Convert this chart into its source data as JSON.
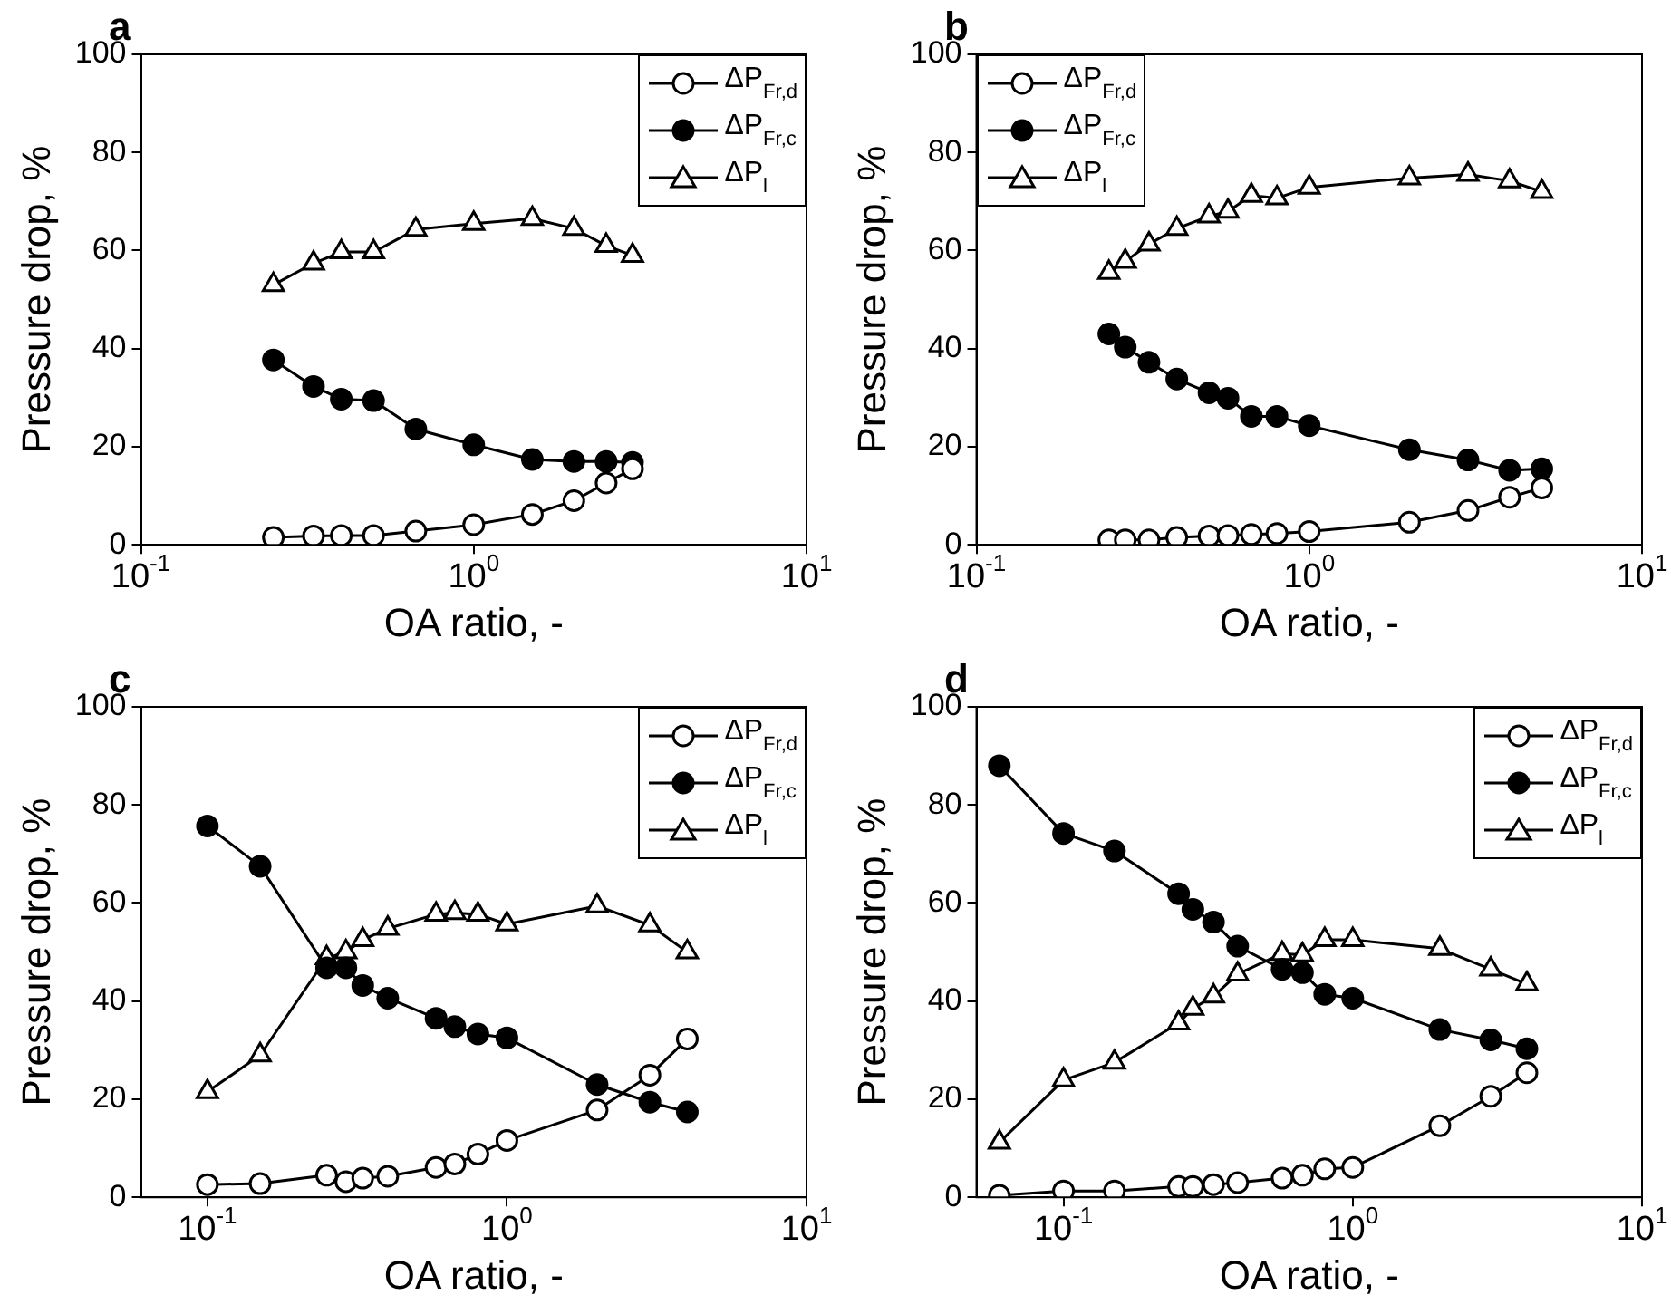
{
  "chart_data": [
    {
      "type": "line",
      "title": "a",
      "xlabel": "OA ratio, -",
      "ylabel": "Pressure drop, %",
      "log": "x",
      "xlim": [
        0.1,
        10
      ],
      "ylim": [
        0,
        100
      ],
      "xticks": [
        {
          "value": 0.1,
          "label": "10$^{-1}$"
        },
        {
          "value": 1,
          "label": "10$^{0}$"
        },
        {
          "value": 10,
          "label": "10$^{1}$"
        }
      ],
      "yticks": [
        0,
        20,
        40,
        60,
        80,
        100
      ],
      "legend": "top right",
      "grid": false,
      "series": [
        {
          "name": "ΔP$_{Fr,d}$",
          "color": "#000000",
          "marker": "open circle",
          "x": [
            0.25,
            0.33,
            0.4,
            0.5,
            0.67,
            1,
            1.5,
            2,
            2.5,
            3
          ],
          "values": [
            1.5,
            1.8,
            1.9,
            1.9,
            2.8,
            4.1,
            6.2,
            9,
            12.6,
            15.5
          ]
        },
        {
          "name": "ΔP$_{Fr,c}$",
          "color": "#000000",
          "marker": "circle",
          "x": [
            0.25,
            0.33,
            0.4,
            0.5,
            0.67,
            1,
            1.5,
            2,
            2.5,
            3
          ],
          "values": [
            37.7,
            32.3,
            29.7,
            29.4,
            23.6,
            20.4,
            17.4,
            17,
            17,
            16.8
          ]
        },
        {
          "name": "ΔP$_{l}$",
          "color": "#000000",
          "marker": "triangle",
          "x": [
            0.25,
            0.33,
            0.4,
            0.5,
            0.67,
            1,
            1.5,
            2,
            2.5,
            3
          ],
          "values": [
            53,
            57.4,
            59.7,
            59.7,
            64.3,
            65.5,
            66.5,
            64.5,
            61,
            59
          ]
        }
      ]
    },
    {
      "type": "line",
      "title": "b",
      "xlabel": "OA ratio, -",
      "ylabel": "Pressure drop, %",
      "log": "x",
      "xlim": [
        0.1,
        10
      ],
      "ylim": [
        0,
        100
      ],
      "xticks": [
        {
          "value": 0.1,
          "label": "10$^{-1}$"
        },
        {
          "value": 1,
          "label": "10$^{0}$"
        },
        {
          "value": 10,
          "label": "10$^{1}$"
        }
      ],
      "yticks": [
        0,
        20,
        40,
        60,
        80,
        100
      ],
      "legend": "top left",
      "grid": false,
      "series": [
        {
          "name": "ΔP$_{Fr,d}$",
          "color": "#000000",
          "marker": "open circle",
          "x": [
            0.25,
            0.28,
            0.33,
            0.4,
            0.5,
            0.57,
            0.67,
            0.8,
            1,
            2,
            3,
            4,
            5
          ],
          "values": [
            1,
            1,
            1,
            1.5,
            1.8,
            1.9,
            2.1,
            2.3,
            2.7,
            4.6,
            7,
            9.7,
            11.6
          ]
        },
        {
          "name": "ΔP$_{Fr,c}$",
          "color": "#000000",
          "marker": "circle",
          "x": [
            0.25,
            0.28,
            0.33,
            0.4,
            0.5,
            0.57,
            0.67,
            0.8,
            1,
            2,
            3,
            4,
            5
          ],
          "values": [
            43,
            40.3,
            37.2,
            33.8,
            31,
            29.9,
            26.2,
            26.2,
            24.3,
            19.4,
            17.3,
            15.2,
            15.5
          ]
        },
        {
          "name": "ΔP$_{l}$",
          "color": "#000000",
          "marker": "triangle",
          "x": [
            0.25,
            0.28,
            0.33,
            0.4,
            0.5,
            0.57,
            0.67,
            0.8,
            1,
            2,
            3,
            4,
            5
          ],
          "values": [
            55.5,
            57.8,
            61.3,
            64.5,
            67,
            68,
            71.2,
            70.7,
            72.9,
            74.8,
            75.5,
            74.2,
            72
          ]
        }
      ]
    },
    {
      "type": "line",
      "title": "c",
      "xlabel": "OA ratio, -",
      "ylabel": "Pressure drop, %",
      "log": "x",
      "xlim": [
        0.06,
        10
      ],
      "ylim": [
        0,
        100
      ],
      "xticks": [
        {
          "value": 0.1,
          "label": "10$^{-1}$"
        },
        {
          "value": 1,
          "label": "10$^{0}$"
        },
        {
          "value": 10,
          "label": "10$^{1}$"
        }
      ],
      "yticks": [
        0,
        20,
        40,
        60,
        80,
        100
      ],
      "legend": "top right",
      "grid": false,
      "series": [
        {
          "name": "ΔP$_{Fr,d}$",
          "color": "#000000",
          "marker": "open circle",
          "x": [
            0.1,
            0.15,
            0.25,
            0.29,
            0.33,
            0.4,
            0.58,
            0.67,
            0.8,
            1,
            2,
            3,
            4
          ],
          "values": [
            2.6,
            2.8,
            4.5,
            3.2,
            3.9,
            4.3,
            6.1,
            6.8,
            8.8,
            11.6,
            17.8,
            24.9,
            32.3
          ]
        },
        {
          "name": "ΔP$_{Fr,c}$",
          "color": "#000000",
          "marker": "circle",
          "x": [
            0.1,
            0.15,
            0.25,
            0.29,
            0.33,
            0.4,
            0.58,
            0.67,
            0.8,
            1,
            2,
            3,
            4
          ],
          "values": [
            75.7,
            67.5,
            46.8,
            46.8,
            43.2,
            40.6,
            36.5,
            34.8,
            33.3,
            32.5,
            23,
            19.4,
            17.4
          ]
        },
        {
          "name": "ΔP$_{l}$",
          "color": "#000000",
          "marker": "triangle",
          "x": [
            0.1,
            0.15,
            0.25,
            0.29,
            0.33,
            0.4,
            0.58,
            0.67,
            0.8,
            1,
            2,
            3,
            4
          ],
          "values": [
            21.5,
            29,
            48.8,
            50,
            52.5,
            54.8,
            57.7,
            58,
            57.7,
            55.7,
            59.4,
            55.5,
            50
          ]
        }
      ]
    },
    {
      "type": "line",
      "title": "d",
      "xlabel": "OA ratio, -",
      "ylabel": "Pressure drop, %",
      "log": "x",
      "xlim": [
        0.05,
        10
      ],
      "ylim": [
        0,
        100
      ],
      "xticks": [
        {
          "value": 0.1,
          "label": "10$^{-1}$"
        },
        {
          "value": 1,
          "label": "10$^{0}$"
        },
        {
          "value": 10,
          "label": "10$^{1}$"
        }
      ],
      "yticks": [
        0,
        20,
        40,
        60,
        80,
        100
      ],
      "legend": "top right",
      "grid": false,
      "series": [
        {
          "name": "ΔP$_{Fr,d}$",
          "color": "#000000",
          "marker": "open circle",
          "x": [
            0.06,
            0.1,
            0.15,
            0.25,
            0.28,
            0.33,
            0.4,
            0.57,
            0.67,
            0.8,
            1,
            2,
            3,
            4
          ],
          "values": [
            0.4,
            1.3,
            1.3,
            2.2,
            2.2,
            2.6,
            3,
            3.9,
            4.5,
            5.8,
            6.1,
            14.6,
            20.6,
            25.4
          ]
        },
        {
          "name": "ΔP$_{Fr,c}$",
          "color": "#000000",
          "marker": "circle",
          "x": [
            0.06,
            0.1,
            0.15,
            0.25,
            0.28,
            0.33,
            0.4,
            0.57,
            0.67,
            0.8,
            1,
            2,
            3,
            4
          ],
          "values": [
            88,
            74.2,
            70.6,
            61.9,
            58.7,
            56.1,
            51.2,
            46.5,
            45.8,
            41.4,
            40.6,
            34.2,
            32.1,
            30.3
          ]
        },
        {
          "name": "ΔP$_{l}$",
          "color": "#000000",
          "marker": "triangle",
          "x": [
            0.06,
            0.1,
            0.15,
            0.25,
            0.28,
            0.33,
            0.4,
            0.57,
            0.67,
            0.8,
            1,
            2,
            3,
            4
          ],
          "values": [
            11.2,
            23.9,
            27.5,
            35.5,
            38.5,
            41,
            45.5,
            49.7,
            49.4,
            52.5,
            52.5,
            50.7,
            46.5,
            43.5
          ]
        }
      ]
    }
  ]
}
